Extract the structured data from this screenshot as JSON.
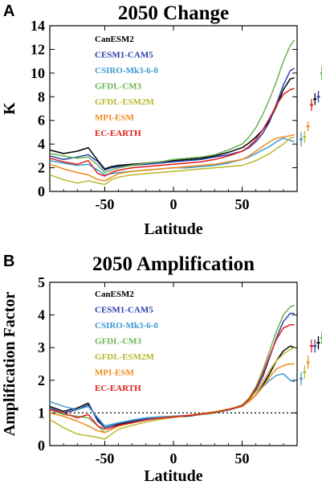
{
  "models": [
    {
      "name": "CanESM2",
      "color": "#000000"
    },
    {
      "name": "CESM1-CAM5",
      "color": "#2b3fa8"
    },
    {
      "name": "CSIRO-Mk3-6-0",
      "color": "#3a9ad0"
    },
    {
      "name": "GFDL-CM3",
      "color": "#69b550"
    },
    {
      "name": "GFDL-ESM2M",
      "color": "#b8b82a"
    },
    {
      "name": "MPI-ESM",
      "color": "#f08a1c"
    },
    {
      "name": "EC-EARTH",
      "color": "#e01e1e"
    }
  ],
  "chart_data": [
    {
      "panel": "A",
      "type": "line",
      "title": "2050 Change",
      "xlabel": "Latitude",
      "ylabel": "K",
      "xlim": [
        -90,
        90
      ],
      "ylim": [
        0,
        14
      ],
      "xticks": [
        -50,
        0,
        50
      ],
      "yticks": [
        0,
        2,
        4,
        6,
        8,
        10,
        12,
        14
      ],
      "x": [
        -90,
        -80,
        -70,
        -62,
        -55,
        -50,
        -45,
        -40,
        -30,
        -20,
        -10,
        0,
        10,
        20,
        30,
        40,
        50,
        55,
        60,
        65,
        70,
        75,
        80,
        85,
        88
      ],
      "series": [
        {
          "name": "CanESM2",
          "values": [
            3.5,
            3.2,
            3.4,
            3.7,
            2.6,
            1.9,
            2.1,
            2.2,
            2.3,
            2.4,
            2.5,
            2.6,
            2.7,
            2.8,
            3.0,
            3.3,
            3.7,
            4.1,
            4.6,
            5.2,
            6.0,
            7.2,
            8.6,
            9.5,
            9.6
          ]
        },
        {
          "name": "CESM1-CAM5",
          "values": [
            3.0,
            2.7,
            2.9,
            3.1,
            2.5,
            1.8,
            2.0,
            2.1,
            2.2,
            2.3,
            2.4,
            2.5,
            2.6,
            2.7,
            2.9,
            3.1,
            3.4,
            3.7,
            4.2,
            4.9,
            5.9,
            7.4,
            9.0,
            10.2,
            10.4
          ]
        },
        {
          "name": "CSIRO-Mk3-6-0",
          "values": [
            2.6,
            2.4,
            2.2,
            2.3,
            1.8,
            1.4,
            1.5,
            1.6,
            1.7,
            1.8,
            1.9,
            2.0,
            2.0,
            2.1,
            2.2,
            2.4,
            2.7,
            2.9,
            3.2,
            3.5,
            3.8,
            4.2,
            4.5,
            4.3,
            4.2
          ]
        },
        {
          "name": "GFDL-CM3",
          "values": [
            3.2,
            3.0,
            2.8,
            2.9,
            2.2,
            1.6,
            1.8,
            2.0,
            2.2,
            2.4,
            2.5,
            2.7,
            2.8,
            2.9,
            3.1,
            3.5,
            4.0,
            4.6,
            5.4,
            6.5,
            7.8,
            9.3,
            11.0,
            12.3,
            12.8
          ]
        },
        {
          "name": "GFDL-ESM2M",
          "values": [
            1.4,
            1.0,
            0.7,
            0.9,
            0.7,
            0.6,
            1.0,
            1.2,
            1.4,
            1.5,
            1.6,
            1.7,
            1.8,
            1.9,
            2.0,
            2.1,
            2.2,
            2.4,
            2.6,
            2.9,
            3.2,
            3.6,
            4.0,
            4.5,
            4.6
          ]
        },
        {
          "name": "MPI-ESM",
          "values": [
            2.3,
            1.9,
            1.6,
            1.4,
            1.0,
            0.9,
            1.2,
            1.5,
            1.7,
            1.8,
            1.9,
            2.0,
            2.1,
            2.2,
            2.3,
            2.5,
            2.7,
            3.0,
            3.4,
            3.8,
            4.2,
            4.5,
            4.6,
            4.7,
            4.8
          ]
        },
        {
          "name": "EC-EARTH",
          "values": [
            2.8,
            2.5,
            2.3,
            2.6,
            1.5,
            1.3,
            1.6,
            1.8,
            2.0,
            2.1,
            2.2,
            2.3,
            2.4,
            2.5,
            2.7,
            3.0,
            3.4,
            3.8,
            4.4,
            5.2,
            6.2,
            7.3,
            8.2,
            8.6,
            8.7
          ]
        }
      ],
      "error_bars": [
        {
          "name": "CSIRO-Mk3-6-0",
          "center": 4.4,
          "half": 0.6
        },
        {
          "name": "GFDL-ESM2M",
          "center": 4.6,
          "half": 0.5
        },
        {
          "name": "MPI-ESM",
          "center": 5.5,
          "half": 0.4
        },
        {
          "name": "EC-EARTH",
          "center": 7.3,
          "half": 0.5
        },
        {
          "name": "CanESM2",
          "center": 7.8,
          "half": 0.5
        },
        {
          "name": "CESM1-CAM5",
          "center": 8.0,
          "half": 0.5
        },
        {
          "name": "GFDL-CM3",
          "center": 10.0,
          "half": 0.6
        }
      ]
    },
    {
      "panel": "B",
      "type": "line",
      "title": "2050 Amplification",
      "xlabel": "Latitude",
      "ylabel": "Amplification Factor",
      "xlim": [
        -90,
        90
      ],
      "ylim": [
        0,
        5
      ],
      "xticks": [
        -50,
        0,
        50
      ],
      "yticks": [
        0,
        1,
        2,
        3,
        4,
        5
      ],
      "reference_line": 1,
      "x": [
        -90,
        -80,
        -70,
        -62,
        -55,
        -50,
        -45,
        -40,
        -30,
        -20,
        -10,
        0,
        10,
        20,
        30,
        40,
        50,
        55,
        60,
        65,
        70,
        75,
        80,
        85,
        88
      ],
      "series": [
        {
          "name": "CanESM2",
          "values": [
            1.2,
            1.05,
            1.15,
            1.3,
            0.75,
            0.55,
            0.6,
            0.65,
            0.72,
            0.8,
            0.85,
            0.88,
            0.9,
            0.95,
            1.0,
            1.1,
            1.2,
            1.35,
            1.55,
            1.85,
            2.2,
            2.6,
            2.9,
            3.05,
            3.0
          ]
        },
        {
          "name": "CESM1-CAM5",
          "values": [
            1.15,
            1.0,
            1.1,
            1.25,
            0.8,
            0.55,
            0.6,
            0.68,
            0.75,
            0.82,
            0.86,
            0.9,
            0.92,
            0.97,
            1.02,
            1.1,
            1.2,
            1.4,
            1.7,
            2.1,
            2.7,
            3.3,
            3.8,
            4.05,
            4.05
          ]
        },
        {
          "name": "CSIRO-Mk3-6-0",
          "values": [
            1.35,
            1.2,
            1.1,
            1.2,
            0.85,
            0.6,
            0.65,
            0.7,
            0.78,
            0.85,
            0.88,
            0.9,
            0.92,
            0.95,
            1.0,
            1.08,
            1.2,
            1.35,
            1.55,
            1.8,
            2.0,
            2.15,
            2.2,
            2.0,
            1.95
          ]
        },
        {
          "name": "GFDL-CM3",
          "values": [
            1.1,
            0.95,
            0.9,
            0.85,
            0.6,
            0.4,
            0.5,
            0.6,
            0.7,
            0.78,
            0.84,
            0.88,
            0.92,
            0.96,
            1.0,
            1.1,
            1.25,
            1.45,
            1.8,
            2.3,
            2.9,
            3.5,
            4.0,
            4.25,
            4.3
          ]
        },
        {
          "name": "GFDL-ESM2M",
          "values": [
            0.8,
            0.55,
            0.35,
            0.3,
            0.25,
            0.2,
            0.35,
            0.5,
            0.62,
            0.72,
            0.8,
            0.86,
            0.92,
            0.98,
            1.04,
            1.12,
            1.22,
            1.4,
            1.65,
            1.95,
            2.3,
            2.6,
            2.8,
            2.95,
            3.0
          ]
        },
        {
          "name": "MPI-ESM",
          "values": [
            1.0,
            0.9,
            0.75,
            0.6,
            0.45,
            0.4,
            0.5,
            0.6,
            0.7,
            0.78,
            0.84,
            0.88,
            0.92,
            0.96,
            1.02,
            1.1,
            1.2,
            1.35,
            1.55,
            1.8,
            2.1,
            2.35,
            2.45,
            2.5,
            2.5
          ]
        },
        {
          "name": "EC-EARTH",
          "values": [
            1.1,
            1.0,
            0.85,
            0.95,
            0.6,
            0.5,
            0.55,
            0.62,
            0.7,
            0.78,
            0.84,
            0.88,
            0.92,
            0.97,
            1.02,
            1.1,
            1.22,
            1.42,
            1.75,
            2.2,
            2.75,
            3.25,
            3.6,
            3.7,
            3.7
          ]
        }
      ],
      "error_bars": [
        {
          "name": "CSIRO-Mk3-6-0",
          "center": 2.05,
          "half": 0.2
        },
        {
          "name": "GFDL-ESM2M",
          "center": 2.25,
          "half": 0.2
        },
        {
          "name": "MPI-ESM",
          "center": 2.55,
          "half": 0.2
        },
        {
          "name": "EC-EARTH",
          "center": 3.05,
          "half": 0.2
        },
        {
          "name": "CESM1-CAM5",
          "center": 3.05,
          "half": 0.2
        },
        {
          "name": "CanESM2",
          "center": 3.15,
          "half": 0.2
        },
        {
          "name": "GFDL-CM3",
          "center": 3.3,
          "half": 0.2
        }
      ]
    }
  ]
}
